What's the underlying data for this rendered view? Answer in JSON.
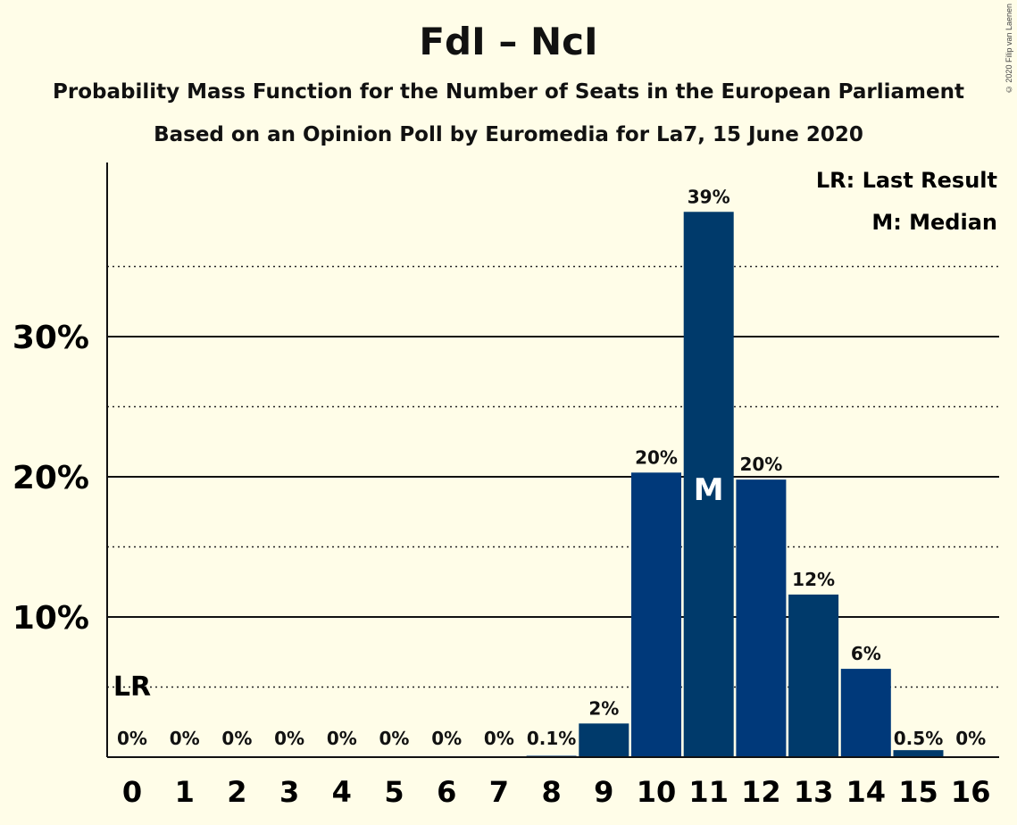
{
  "title": "FdI – NcI",
  "subtitle1": "Probability Mass Function for the Number of Seats in the European Parliament",
  "subtitle2": "Based on an Opinion Poll by Euromedia for La7, 15 June 2020",
  "copyright": "© 2020 Filip van Laenen",
  "legend": {
    "last_result": "LR: Last Result",
    "median": "M: Median"
  },
  "colors": {
    "background": "#fffde8",
    "bar_dark": "#003a6b",
    "bar_light": "#00397a"
  },
  "chart_data": {
    "type": "bar",
    "title": "FdI – NcI",
    "categories": [
      "0",
      "1",
      "2",
      "3",
      "4",
      "5",
      "6",
      "7",
      "8",
      "9",
      "10",
      "11",
      "12",
      "13",
      "14",
      "15",
      "16"
    ],
    "values": [
      0,
      0,
      0,
      0,
      0,
      0,
      0,
      0,
      0.1,
      2.4,
      20.3,
      38.9,
      19.8,
      11.6,
      6.3,
      0.5,
      0
    ],
    "data_labels": [
      "0%",
      "0%",
      "0%",
      "0%",
      "0%",
      "0%",
      "0%",
      "0%",
      "0.1%",
      "2%",
      "20%",
      "39%",
      "20%",
      "12%",
      "6%",
      "0.5%",
      "0%"
    ],
    "y_ticks": [
      "10%",
      "20%",
      "30%"
    ],
    "ylim": [
      0,
      42
    ],
    "last_result_seat": 0,
    "last_result_label": "LR",
    "median_seat": 11,
    "median_label": "M",
    "grid": "solid lines at 10% steps, dotted lines at 5% steps"
  }
}
